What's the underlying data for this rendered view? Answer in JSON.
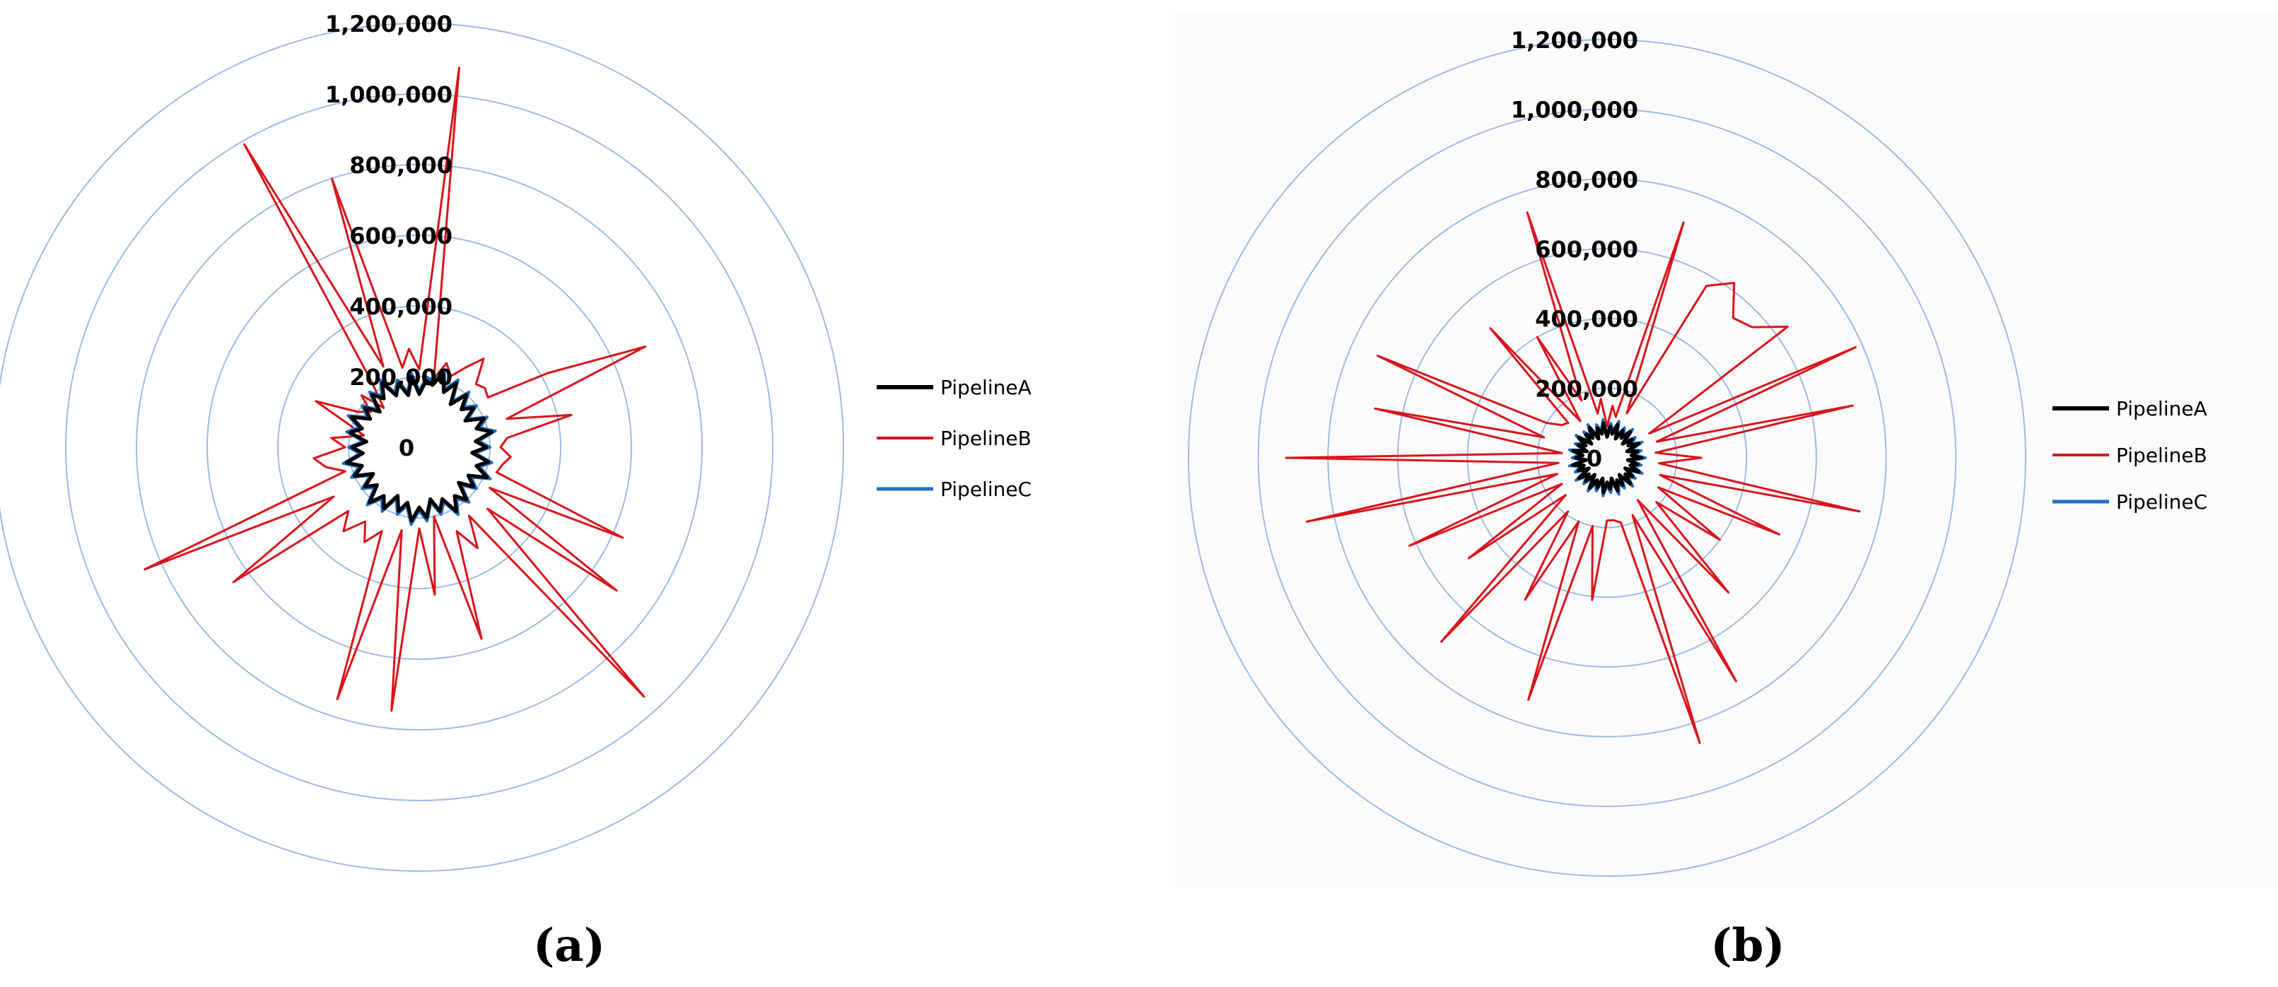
{
  "colors": {
    "PipelineA": "#000000",
    "PipelineB": "#d9141b",
    "PipelineC": "#1f6fbf",
    "grid": "#9dbbe8",
    "panel_b_background": "#fbfbfb"
  },
  "chart_data": [
    {
      "type": "radar",
      "panel_label": "(a)",
      "grid": true,
      "legend_position": "right",
      "rlim": [
        0,
        1200000
      ],
      "tick_labels": [
        "0",
        "200,000",
        "400,000",
        "600,000",
        "800,000",
        "1,000,000",
        "1,200,000"
      ],
      "legend": [
        "PipelineA",
        "PipelineB",
        "PipelineC"
      ],
      "series": [
        {
          "name": "PipelineA",
          "values": [
            150000,
            190000,
            180000,
            220000,
            170000,
            210000,
            150000,
            200000,
            160000,
            190000,
            150000,
            200000,
            170000,
            210000,
            160000,
            190000,
            150000,
            200000,
            170000,
            210000,
            160000,
            190000,
            150000,
            200000,
            170000,
            210000,
            160000,
            190000,
            150000,
            200000,
            170000,
            210000,
            160000,
            190000,
            150000,
            200000,
            170000,
            210000,
            160000,
            190000,
            150000,
            200000,
            170000,
            210000,
            160000,
            190000,
            150000,
            200000,
            170000,
            210000,
            160000,
            190000,
            150000,
            200000,
            170000,
            210000,
            160000,
            190000,
            150000,
            200000
          ]
        },
        {
          "name": "PipelineB",
          "values": [
            220000,
            1080000,
            200000,
            250000,
            220000,
            260000,
            310000,
            240000,
            250000,
            240000,
            420000,
            700000,
            260000,
            440000,
            250000,
            230000,
            260000,
            240000,
            230000,
            630000,
            230000,
            690000,
            260000,
            950000,
            240000,
            330000,
            260000,
            570000,
            200000,
            420000,
            230000,
            750000,
            240000,
            750000,
            260000,
            310000,
            260000,
            320000,
            270000,
            650000,
            280000,
            850000,
            220000,
            270000,
            300000,
            210000,
            250000,
            160000,
            210000,
            320000,
            200000,
            170000,
            220000,
            150000,
            230000,
            990000,
            250000,
            800000,
            230000,
            280000
          ]
        },
        {
          "name": "PipelineC",
          "values": [
            160000,
            200000,
            190000,
            230000,
            180000,
            220000,
            160000,
            210000,
            170000,
            200000,
            160000,
            210000,
            180000,
            220000,
            170000,
            200000,
            160000,
            210000,
            180000,
            220000,
            170000,
            200000,
            160000,
            210000,
            180000,
            220000,
            170000,
            200000,
            160000,
            210000,
            180000,
            220000,
            170000,
            200000,
            160000,
            210000,
            180000,
            220000,
            170000,
            200000,
            160000,
            210000,
            180000,
            220000,
            170000,
            200000,
            160000,
            210000,
            180000,
            220000,
            170000,
            200000,
            160000,
            210000,
            180000,
            220000,
            170000,
            200000,
            160000,
            210000
          ]
        }
      ]
    },
    {
      "type": "radar",
      "panel_label": "(b)",
      "grid": true,
      "legend_position": "right",
      "rlim": [
        0,
        1200000
      ],
      "tick_labels": [
        "0",
        "200,000",
        "400,000",
        "600,000",
        "800,000",
        "1,000,000",
        "1,200,000"
      ],
      "legend": [
        "PipelineA",
        "PipelineB",
        "PipelineC"
      ],
      "series": [
        {
          "name": "PipelineA",
          "values": [
            60000,
            90000,
            70000,
            100000,
            60000,
            90000,
            70000,
            100000,
            60000,
            90000,
            70000,
            100000,
            60000,
            90000,
            70000,
            100000,
            60000,
            90000,
            70000,
            100000,
            60000,
            90000,
            70000,
            100000,
            60000,
            90000,
            70000,
            100000,
            60000,
            90000,
            70000,
            100000,
            60000,
            90000,
            70000,
            100000,
            60000,
            90000,
            70000,
            100000,
            60000,
            90000,
            70000,
            100000,
            60000,
            90000,
            70000,
            100000,
            60000,
            90000,
            70000,
            100000,
            60000,
            90000,
            70000,
            100000,
            60000,
            90000,
            70000,
            100000
          ]
        },
        {
          "name": "PipelineB",
          "values": [
            90000,
            150000,
            120000,
            710000,
            140000,
            570000,
            620000,
            540000,
            560000,
            640000,
            140000,
            780000,
            150000,
            720000,
            140000,
            270000,
            150000,
            740000,
            160000,
            540000,
            170000,
            400000,
            190000,
            520000,
            150000,
            740000,
            180000,
            860000,
            190000,
            180000,
            180000,
            410000,
            200000,
            730000,
            200000,
            470000,
            190000,
            710000,
            160000,
            490000,
            150000,
            620000,
            150000,
            880000,
            140000,
            920000,
            130000,
            680000,
            190000,
            720000,
            200000,
            160000,
            150000,
            500000,
            130000,
            400000,
            180000,
            740000,
            130000,
            170000
          ]
        },
        {
          "name": "PipelineC",
          "values": [
            70000,
            100000,
            80000,
            110000,
            70000,
            100000,
            80000,
            110000,
            70000,
            100000,
            80000,
            110000,
            70000,
            100000,
            80000,
            110000,
            70000,
            100000,
            80000,
            110000,
            70000,
            100000,
            80000,
            110000,
            70000,
            100000,
            80000,
            110000,
            70000,
            100000,
            80000,
            110000,
            70000,
            100000,
            80000,
            110000,
            70000,
            100000,
            80000,
            110000,
            70000,
            100000,
            80000,
            110000,
            70000,
            100000,
            80000,
            110000,
            70000,
            100000,
            80000,
            110000,
            70000,
            100000,
            80000,
            110000,
            70000,
            100000,
            80000,
            110000
          ]
        }
      ]
    }
  ]
}
